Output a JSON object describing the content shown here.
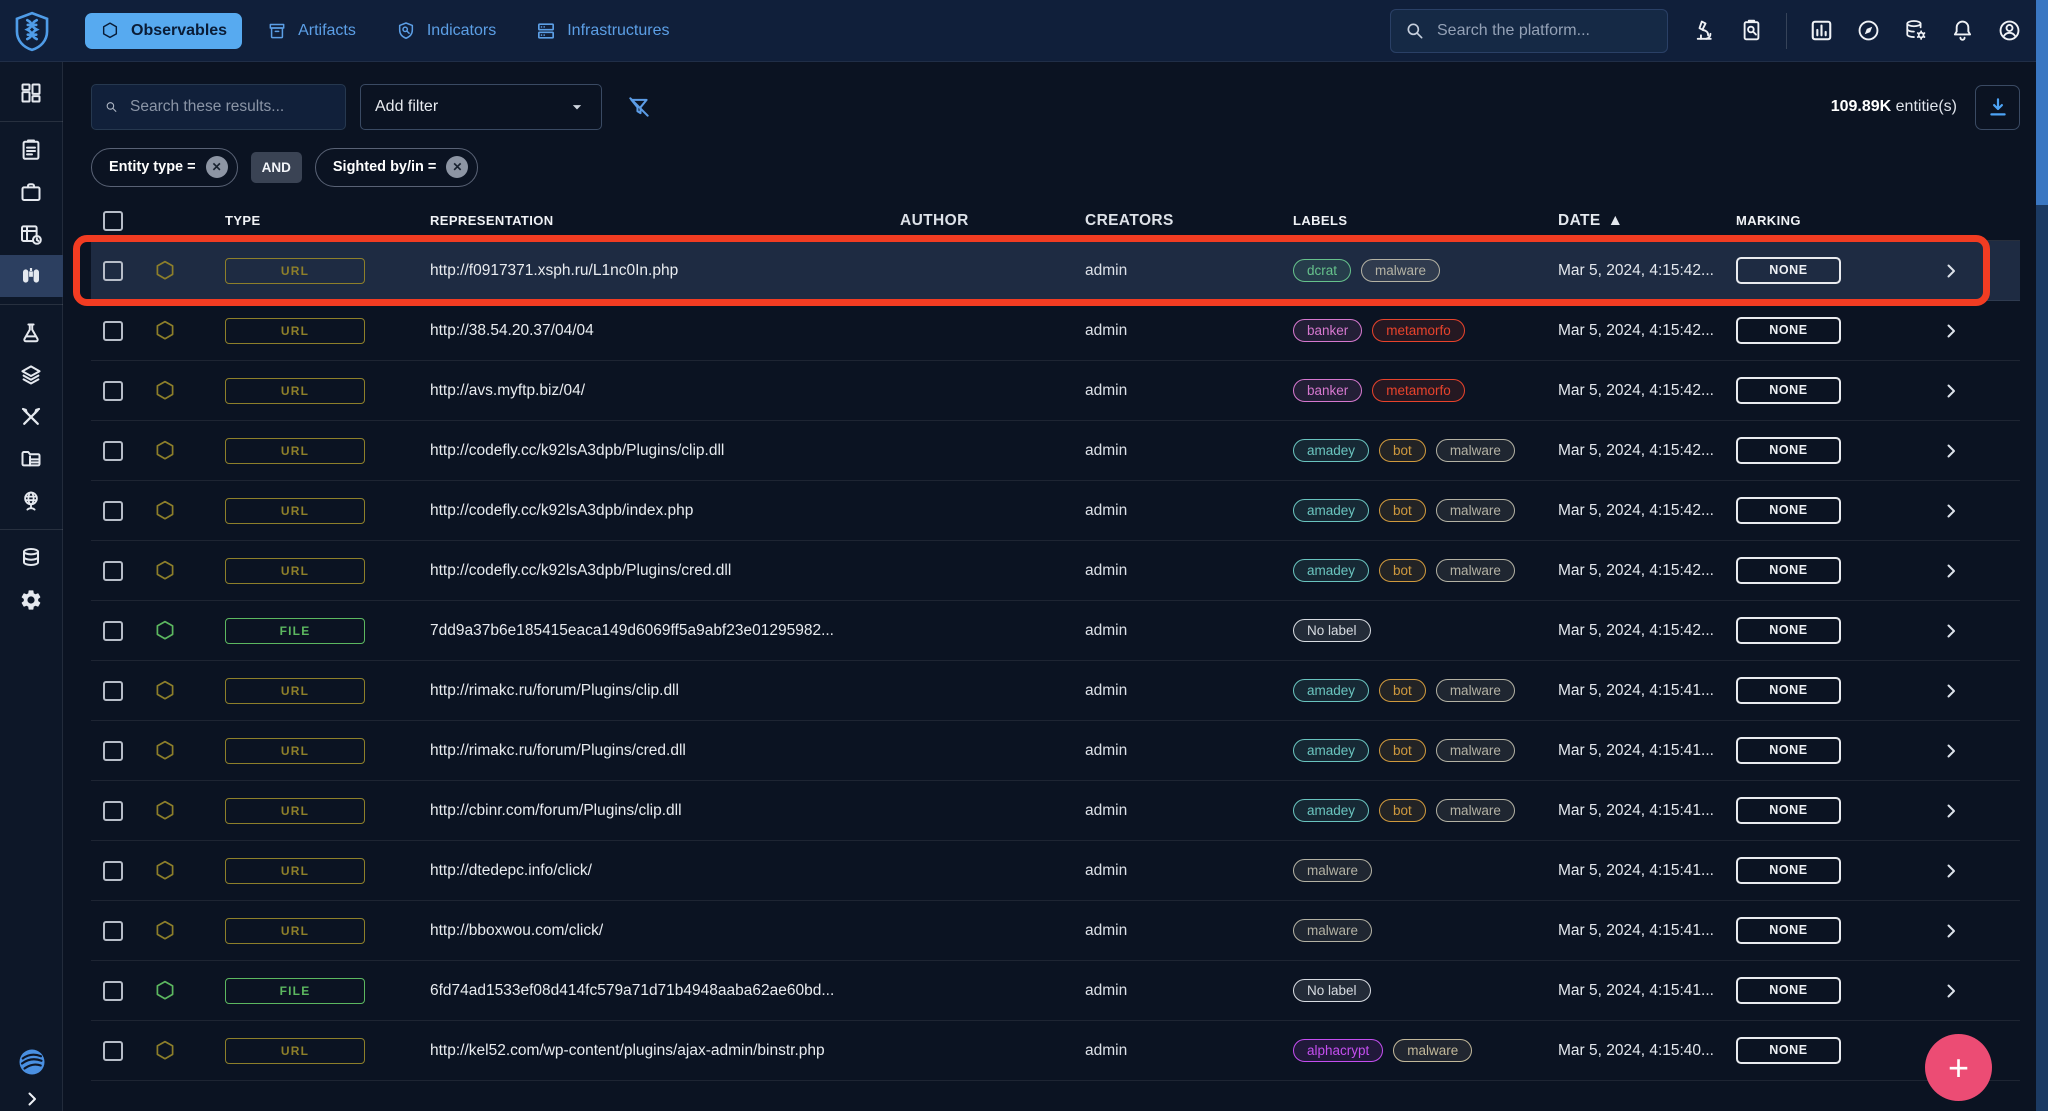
{
  "colors": {
    "accent_blue": "#57aaf0",
    "icon_blue": "#5c9ce6",
    "fab_pink": "#ec4c74",
    "annotation_red": "#f23c22",
    "marking_chip": "#e9ebef",
    "type_colors": {
      "URL": "#8d7f2a",
      "FILE": "#5cb860"
    }
  },
  "topbar": {
    "logo_icon": "opencti-logo",
    "tabs": [
      {
        "label": "Observables",
        "icon": "hexagon",
        "active": true
      },
      {
        "label": "Artifacts",
        "icon": "archive",
        "active": false
      },
      {
        "label": "Indicators",
        "icon": "shield-search",
        "active": false
      },
      {
        "label": "Infrastructures",
        "icon": "server",
        "active": false
      }
    ],
    "search_placeholder": "Search the platform...",
    "action_icons_left": [
      "microscope",
      "clipboard-search"
    ],
    "action_icons_right": [
      "bar-chart",
      "compass",
      "database-gear",
      "bell",
      "account"
    ]
  },
  "sidebar": {
    "groups": [
      {
        "items": [
          {
            "icon": "dashboard",
            "name": "home"
          }
        ]
      },
      {
        "items": [
          {
            "icon": "clipboard",
            "name": "analyses"
          },
          {
            "icon": "briefcase",
            "name": "cases"
          },
          {
            "icon": "events",
            "name": "events"
          },
          {
            "icon": "binoculars",
            "name": "observations",
            "selected": true
          }
        ]
      },
      {
        "items": [
          {
            "icon": "flask",
            "name": "threats"
          },
          {
            "icon": "layers",
            "name": "arsenal"
          },
          {
            "icon": "tools",
            "name": "techniques"
          },
          {
            "icon": "entities",
            "name": "entities"
          },
          {
            "icon": "globe",
            "name": "locations"
          }
        ]
      },
      {
        "items": [
          {
            "icon": "database",
            "name": "data"
          },
          {
            "icon": "gear",
            "name": "settings"
          }
        ]
      }
    ],
    "footer": {
      "logo_icon": "filigran-logo",
      "collapse_icon": "chevron-right"
    }
  },
  "controls": {
    "results_search_placeholder": "Search these results...",
    "add_filter_label": "Add filter",
    "count_value": "109.89K",
    "count_suffix": " entitie(s)"
  },
  "filters": {
    "chips": [
      {
        "label": "Entity type ="
      },
      {
        "label": "Sighted by/in ="
      }
    ],
    "operator": "AND"
  },
  "table": {
    "headers": {
      "type": "TYPE",
      "representation": "REPRESENTATION",
      "author": "AUTHOR",
      "creators": "CREATORS",
      "labels": "LABELS",
      "date": "DATE",
      "marking": "MARKING"
    },
    "sort": {
      "column": "DATE",
      "direction": "asc",
      "icon": "▲"
    },
    "rows": [
      {
        "type": "URL",
        "representation": "http://f0917371.xsph.ru/L1nc0In.php",
        "author": "",
        "creators": "admin",
        "labels": [
          {
            "text": "dcrat",
            "color": "#66c28c"
          },
          {
            "text": "malware",
            "color": "#b4b2a4"
          }
        ],
        "date": "Mar 5, 2024, 4:15:42...",
        "marking": "NONE"
      },
      {
        "type": "URL",
        "representation": "http://38.54.20.37/04/04",
        "author": "",
        "creators": "admin",
        "labels": [
          {
            "text": "banker",
            "color": "#d678cf"
          },
          {
            "text": "metamorfo",
            "color": "#e8432c"
          }
        ],
        "date": "Mar 5, 2024, 4:15:42...",
        "marking": "NONE"
      },
      {
        "type": "URL",
        "representation": "http://avs.myftp.biz/04/",
        "author": "",
        "creators": "admin",
        "labels": [
          {
            "text": "banker",
            "color": "#d678cf"
          },
          {
            "text": "metamorfo",
            "color": "#e8432c"
          }
        ],
        "date": "Mar 5, 2024, 4:15:42...",
        "marking": "NONE"
      },
      {
        "type": "URL",
        "representation": "http://codefly.cc/k92lsA3dpb/Plugins/clip.dll",
        "author": "",
        "creators": "admin",
        "labels": [
          {
            "text": "amadey",
            "color": "#6ac4bf"
          },
          {
            "text": "bot",
            "color": "#d09a3e"
          },
          {
            "text": "malware",
            "color": "#b4b2a4"
          }
        ],
        "date": "Mar 5, 2024, 4:15:42...",
        "marking": "NONE"
      },
      {
        "type": "URL",
        "representation": "http://codefly.cc/k92lsA3dpb/index.php",
        "author": "",
        "creators": "admin",
        "labels": [
          {
            "text": "amadey",
            "color": "#6ac4bf"
          },
          {
            "text": "bot",
            "color": "#d09a3e"
          },
          {
            "text": "malware",
            "color": "#b4b2a4"
          }
        ],
        "date": "Mar 5, 2024, 4:15:42...",
        "marking": "NONE"
      },
      {
        "type": "URL",
        "representation": "http://codefly.cc/k92lsA3dpb/Plugins/cred.dll",
        "author": "",
        "creators": "admin",
        "labels": [
          {
            "text": "amadey",
            "color": "#6ac4bf"
          },
          {
            "text": "bot",
            "color": "#d09a3e"
          },
          {
            "text": "malware",
            "color": "#b4b2a4"
          }
        ],
        "date": "Mar 5, 2024, 4:15:42...",
        "marking": "NONE"
      },
      {
        "type": "FILE",
        "representation": "7dd9a37b6e185415eaca149d6069ff5a9abf23e01295982...",
        "author": "",
        "creators": "admin",
        "labels": [
          {
            "text": "No label",
            "color": "#d8dce2"
          }
        ],
        "date": "Mar 5, 2024, 4:15:42...",
        "marking": "NONE"
      },
      {
        "type": "URL",
        "representation": "http://rimakc.ru/forum/Plugins/clip.dll",
        "author": "",
        "creators": "admin",
        "labels": [
          {
            "text": "amadey",
            "color": "#6ac4bf"
          },
          {
            "text": "bot",
            "color": "#d09a3e"
          },
          {
            "text": "malware",
            "color": "#b4b2a4"
          }
        ],
        "date": "Mar 5, 2024, 4:15:41...",
        "marking": "NONE"
      },
      {
        "type": "URL",
        "representation": "http://rimakc.ru/forum/Plugins/cred.dll",
        "author": "",
        "creators": "admin",
        "labels": [
          {
            "text": "amadey",
            "color": "#6ac4bf"
          },
          {
            "text": "bot",
            "color": "#d09a3e"
          },
          {
            "text": "malware",
            "color": "#b4b2a4"
          }
        ],
        "date": "Mar 5, 2024, 4:15:41...",
        "marking": "NONE"
      },
      {
        "type": "URL",
        "representation": "http://cbinr.com/forum/Plugins/clip.dll",
        "author": "",
        "creators": "admin",
        "labels": [
          {
            "text": "amadey",
            "color": "#6ac4bf"
          },
          {
            "text": "bot",
            "color": "#d09a3e"
          },
          {
            "text": "malware",
            "color": "#b4b2a4"
          }
        ],
        "date": "Mar 5, 2024, 4:15:41...",
        "marking": "NONE"
      },
      {
        "type": "URL",
        "representation": "http://dtedepc.info/click/",
        "author": "",
        "creators": "admin",
        "labels": [
          {
            "text": "malware",
            "color": "#b4b2a4"
          }
        ],
        "date": "Mar 5, 2024, 4:15:41...",
        "marking": "NONE"
      },
      {
        "type": "URL",
        "representation": "http://bboxwou.com/click/",
        "author": "",
        "creators": "admin",
        "labels": [
          {
            "text": "malware",
            "color": "#b4b2a4"
          }
        ],
        "date": "Mar 5, 2024, 4:15:41...",
        "marking": "NONE"
      },
      {
        "type": "FILE",
        "representation": "6fd74ad1533ef08d414fc579a71d71b4948aaba62ae60bd...",
        "author": "",
        "creators": "admin",
        "labels": [
          {
            "text": "No label",
            "color": "#d8dce2"
          }
        ],
        "date": "Mar 5, 2024, 4:15:41...",
        "marking": "NONE"
      },
      {
        "type": "URL",
        "representation": "http://kel52.com/wp-content/plugins/ajax-admin/binstr.php",
        "author": "",
        "creators": "admin",
        "labels": [
          {
            "text": "alphacrypt",
            "color": "#c44ef0"
          },
          {
            "text": "malware",
            "color": "#c2b89a"
          }
        ],
        "date": "Mar 5, 2024, 4:15:40...",
        "marking": "NONE"
      }
    ]
  },
  "annotation": {
    "type": "highlight-box",
    "row_index": 0,
    "color": "#f23c22"
  },
  "fab": {
    "label": "+"
  }
}
